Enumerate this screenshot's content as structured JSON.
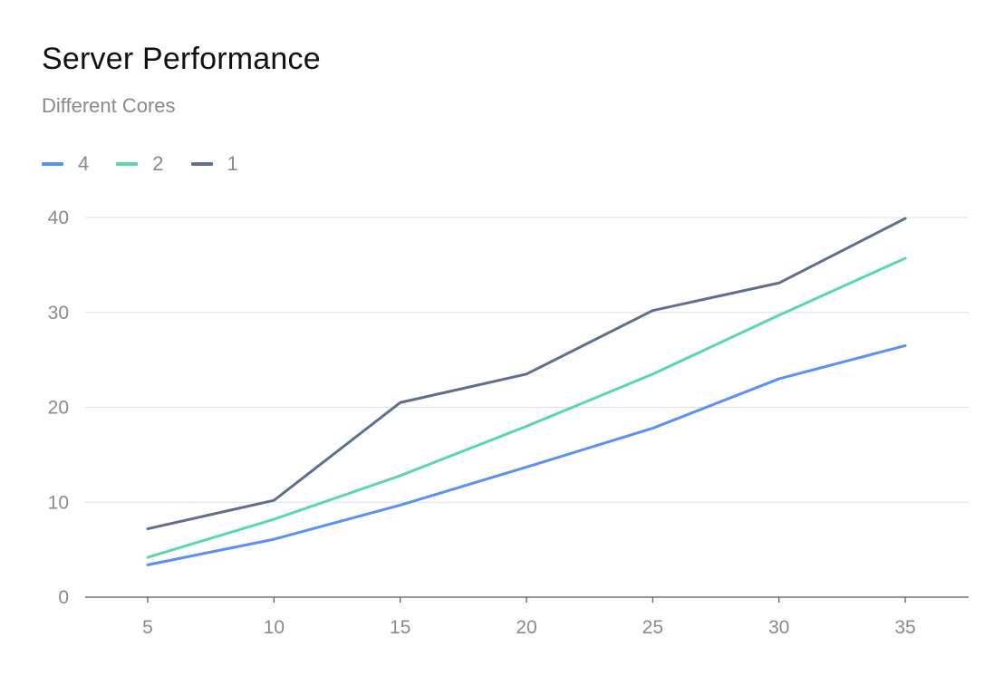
{
  "chart_data": {
    "type": "line",
    "title": "Server Performance",
    "subtitle": "Different Cores",
    "xlabel": "",
    "ylabel": "",
    "x": [
      5,
      10,
      15,
      20,
      25,
      30,
      35
    ],
    "ylim": [
      0,
      40
    ],
    "yticks": [
      0,
      10,
      20,
      30,
      40
    ],
    "grid": true,
    "legend_position": "top-left",
    "series": [
      {
        "name": "4",
        "color": "#5B8FF9",
        "values": [
          3.4,
          6.1,
          9.7,
          13.7,
          17.8,
          23.0,
          26.5
        ]
      },
      {
        "name": "2",
        "color": "#5AD8A6",
        "values": [
          4.2,
          8.2,
          12.8,
          18.0,
          23.5,
          29.7,
          35.7
        ]
      },
      {
        "name": "1",
        "color": "#5D7092",
        "values": [
          7.2,
          10.2,
          20.5,
          23.5,
          30.2,
          33.1,
          39.9
        ]
      }
    ]
  }
}
